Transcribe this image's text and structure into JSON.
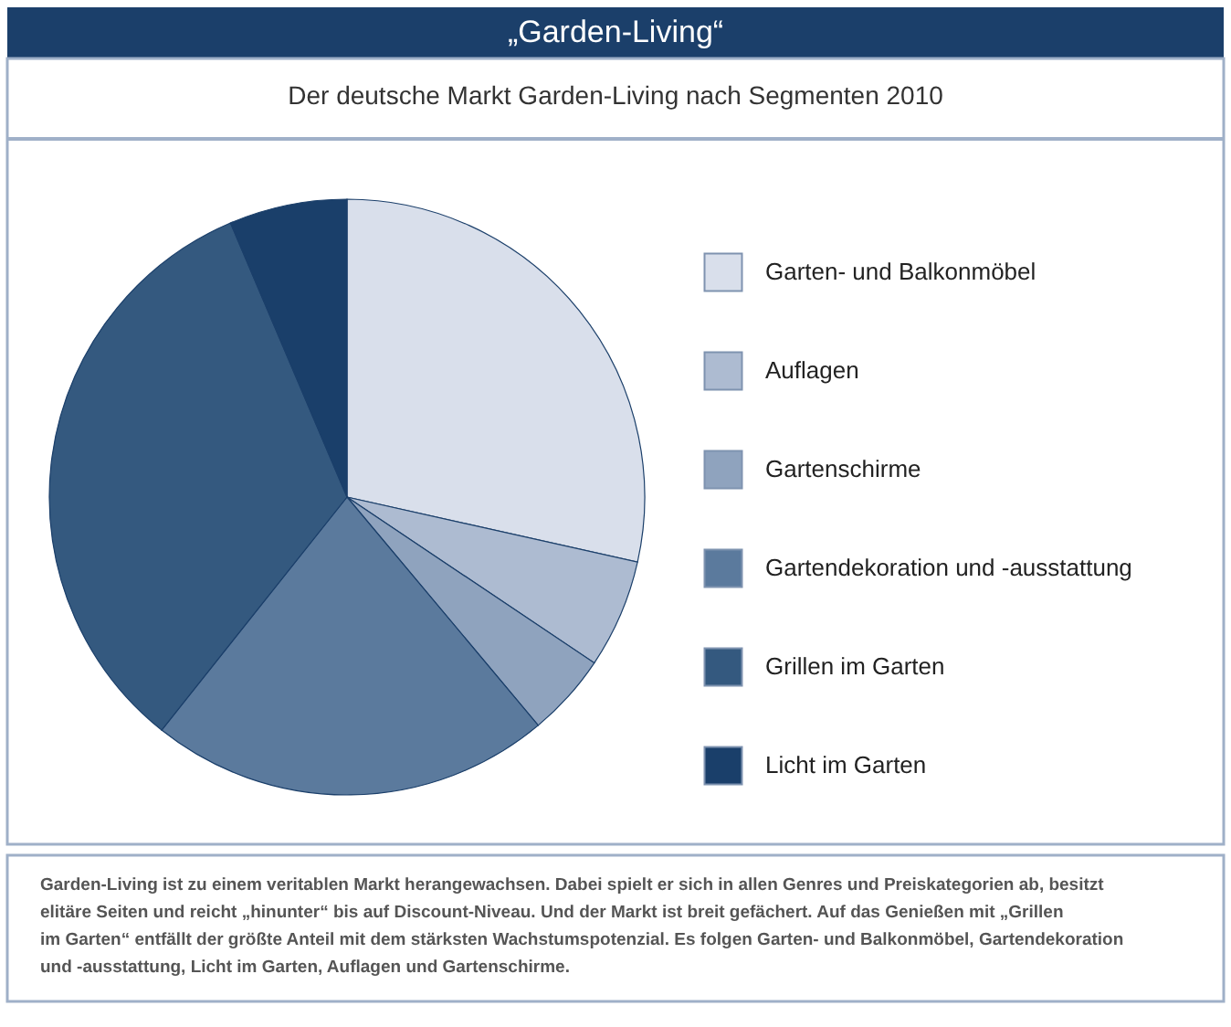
{
  "chart_data": {
    "type": "pie",
    "title": "„Garden-Living“",
    "subtitle": "Der deutsche Markt Garden-Living nach Segmenten 2010",
    "categories": [
      "Garten- und Balkonmöbel",
      "Auflagen",
      "Gartenschirme",
      "Gartendekoration und -ausstattung",
      "Grillen im Garten",
      "Licht im Garten"
    ],
    "values": [
      28.5,
      5.9,
      4.5,
      21.8,
      32.9,
      6.4
    ],
    "colors": [
      "#d9dfeb",
      "#adbbd1",
      "#8fa3be",
      "#5b7a9d",
      "#34597f",
      "#1a3f6a"
    ],
    "legend": "right",
    "annotations": [
      "Garden-Living ist zu einem veritablen Markt herangewachsen. Dabei spielt er sich in allen Genres und Preiskategorien ab, besitzt elitäre Seiten und reicht „hinunter“ bis auf Discount-Niveau. Und der Markt ist breit gefächert. Auf das Genießen mit „Grillen im Garten“ entfällt der größte Anteil mit dem stärksten Wachstumspotenzial. Es folgen Garten- und Balkonmöbel, Gartendekoration und -ausstattung, Licht im Garten, Auflagen und Gartenschirme."
    ]
  }
}
